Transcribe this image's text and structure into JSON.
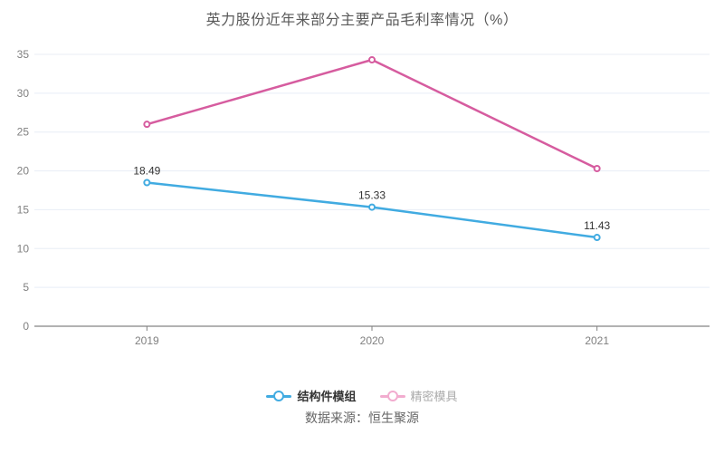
{
  "chart": {
    "title": "英力股份近年来部分主要产品毛利率情况（%）",
    "source": "数据来源：恒生聚源"
  },
  "legend": {
    "items": [
      {
        "label": "结构件模组",
        "icon_color": "#41ABE1",
        "text_color": "#333333"
      },
      {
        "label": "精密模具",
        "icon_color": "#F2ACCF",
        "text_color": "#AAAAAA"
      }
    ]
  },
  "colors": {
    "blue_series": "#41ABE1",
    "pink_series": "#D65C9F",
    "gridline": "#E8EDF6",
    "axis_line": "#666666",
    "tick_label": "#808080",
    "data_label": "#333333",
    "title_text": "#595959",
    "source_text": "#666666"
  },
  "chart_data": {
    "type": "line",
    "title": "英力股份近年来部分主要产品毛利率情况（%）",
    "categories": [
      "2019",
      "2020",
      "2021"
    ],
    "series": [
      {
        "name": "结构件模组",
        "color": "#41ABE1",
        "values": [
          18.49,
          15.33,
          11.43
        ],
        "data_labels": [
          "18.49",
          "15.33",
          "11.43"
        ]
      },
      {
        "name": "精密模具",
        "color": "#D65C9F",
        "values": [
          26.0,
          34.3,
          20.3
        ],
        "data_labels": null
      }
    ],
    "xlabel": "",
    "ylabel": "",
    "ylim": [
      0,
      35
    ],
    "y_ticks": [
      0,
      5,
      10,
      15,
      20,
      25,
      30,
      35
    ],
    "grid": true,
    "legend_position": "bottom",
    "marker": "open-circle"
  }
}
